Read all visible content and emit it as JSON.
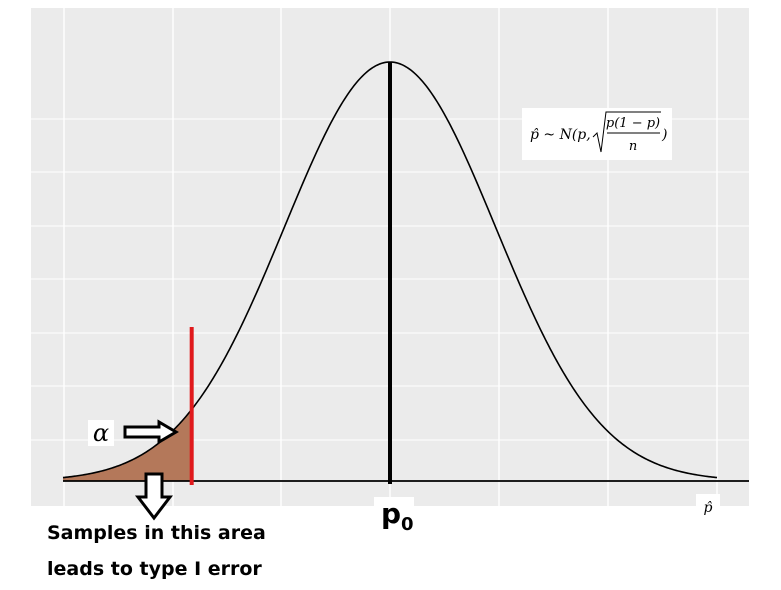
{
  "chart_data": {
    "type": "area",
    "title": "",
    "xlabel": "p̂",
    "ylabel": "",
    "grid": true,
    "distribution": "normal",
    "formula": {
      "lhs": "p̂ ~ N(p,",
      "numerator": "p(1 − p)",
      "denominator": "n",
      "close": ")"
    },
    "mean_label": "p",
    "mean_subscript": "0",
    "alpha_label": "α",
    "critical_value_sd": -1.88,
    "shaded_region": "left tail",
    "x_range_sd": [
      -3.1,
      3.1
    ],
    "colors": {
      "curve": "#000000",
      "tail_fill": "#b4785a",
      "critical_line": "#e0191c",
      "mean_line": "#000000",
      "panel": "#ebebeb",
      "grid": "#ffffff"
    }
  },
  "annotations": {
    "caption_line1": "Samples in this area",
    "caption_line2": "leads to type I error"
  }
}
